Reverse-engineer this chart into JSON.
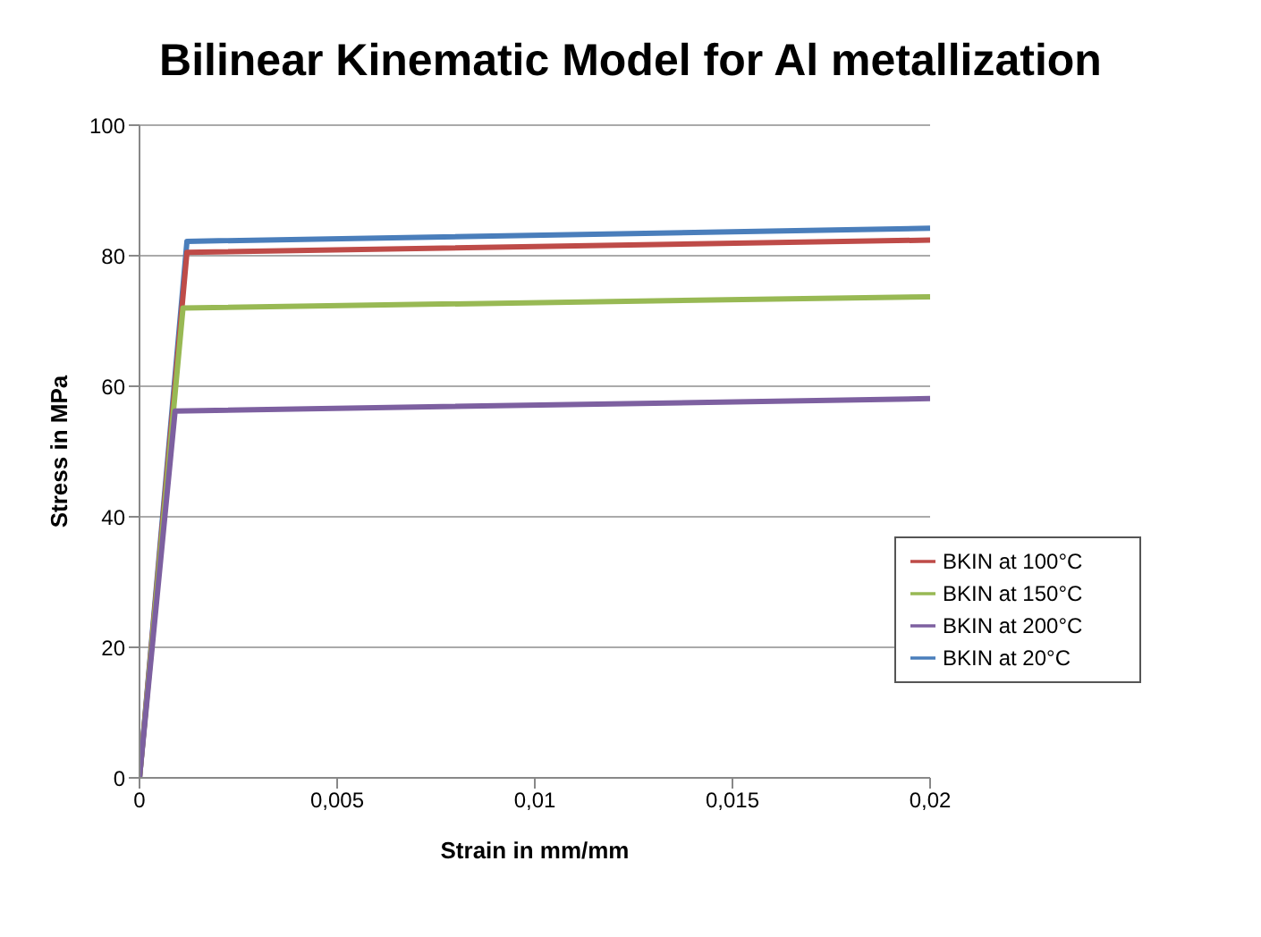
{
  "chart_data": {
    "type": "line",
    "title": "Bilinear Kinematic Model for Al metallization",
    "xlabel": "Strain in mm/mm",
    "ylabel": "Stress in MPa",
    "series": [
      {
        "name": "BKIN at 20°C",
        "color": "#4a7ebb",
        "x": [
          0,
          0.0012,
          0.02
        ],
        "values": [
          0,
          82.2,
          84.2
        ]
      },
      {
        "name": "BKIN at 100°C",
        "color": "#be4b48",
        "x": [
          0,
          0.0012,
          0.02
        ],
        "values": [
          0,
          80.5,
          82.4
        ]
      },
      {
        "name": "BKIN at 150°C",
        "color": "#98b954",
        "x": [
          0,
          0.0011,
          0.02
        ],
        "values": [
          0,
          72,
          73.7
        ]
      },
      {
        "name": "BKIN at 200°C",
        "color": "#7d60a0",
        "x": [
          0,
          0.0009,
          0.02
        ],
        "values": [
          0,
          56.2,
          58.1
        ]
      }
    ],
    "xlim": [
      0,
      0.02
    ],
    "xticks": [
      {
        "value": 0,
        "label": "0"
      },
      {
        "value": 0.005,
        "label": "0,005"
      },
      {
        "value": 0.01,
        "label": "0,01"
      },
      {
        "value": 0.015,
        "label": "0,015"
      },
      {
        "value": 0.02,
        "label": "0,02"
      }
    ],
    "ylim": [
      0,
      100
    ],
    "yticks": [
      0,
      20,
      40,
      60,
      80,
      100
    ],
    "grid": "y",
    "legend": "right",
    "marker": "none",
    "line_style": "solid"
  }
}
